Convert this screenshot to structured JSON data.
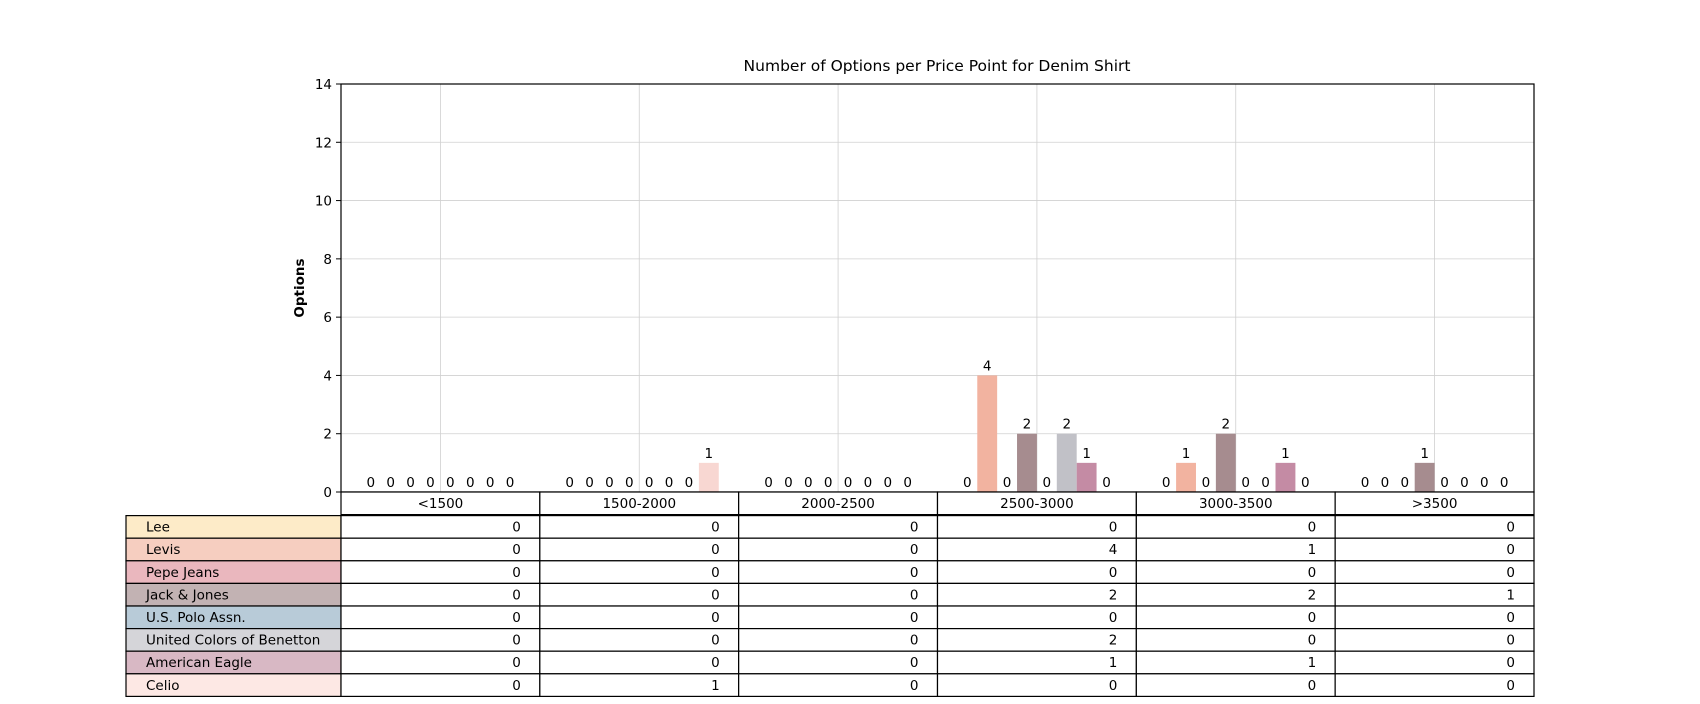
{
  "chart_data": {
    "type": "bar",
    "title": "Number of Options per Price Point for Denim Shirt",
    "xlabel": "",
    "ylabel": "Options",
    "ylim": [
      0,
      14
    ],
    "yticks": [
      0,
      2,
      4,
      6,
      8,
      10,
      12,
      14
    ],
    "grid": true,
    "legend": "table below chart",
    "categories": [
      "<1500",
      "1500-2000",
      "2000-2500",
      "2500-3000",
      "3000-3500",
      ">3500"
    ],
    "series": [
      {
        "name": "Lee",
        "color": "#FDEBC8",
        "values": [
          0,
          0,
          0,
          0,
          0,
          0
        ]
      },
      {
        "name": "Levis",
        "color": "#F2B3A0",
        "values": [
          0,
          0,
          0,
          4,
          1,
          0
        ]
      },
      {
        "name": "Pepe Jeans",
        "color": "#EAB4BD",
        "values": [
          0,
          0,
          0,
          0,
          0,
          0
        ]
      },
      {
        "name": "Jack & Jones",
        "color": "#A68C8F",
        "values": [
          0,
          0,
          0,
          2,
          2,
          1
        ]
      },
      {
        "name": "U.S. Polo Assn.",
        "color": "#B5C9D6",
        "values": [
          0,
          0,
          0,
          0,
          0,
          0
        ]
      },
      {
        "name": "United Colors of Benetton",
        "color": "#C1C1C7",
        "values": [
          0,
          0,
          0,
          2,
          0,
          0
        ]
      },
      {
        "name": "American Eagle",
        "color": "#C48BA4",
        "values": [
          0,
          0,
          0,
          1,
          1,
          0
        ]
      },
      {
        "name": "Celio",
        "color": "#F8D7D2",
        "values": [
          0,
          1,
          0,
          0,
          0,
          0
        ]
      }
    ],
    "table_cell_colors": {
      "Lee": "#FDEBC8",
      "Levis": "#F6CEC0",
      "Pepe Jeans": "#EAB7BE",
      "Jack & Jones": "#C2B2B3",
      "U.S. Polo Assn.": "#B8CBD8",
      "United Colors of Benetton": "#D5D5D9",
      "American Eagle": "#D8B8C4",
      "Celio": "#FDE8E4"
    }
  }
}
